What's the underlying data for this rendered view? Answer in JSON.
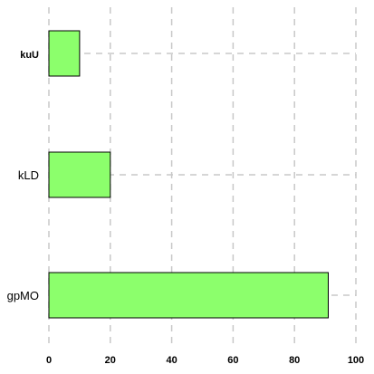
{
  "chart_data": {
    "type": "bar",
    "orientation": "horizontal",
    "categories": [
      "kuU",
      "kLD",
      "gpMO"
    ],
    "values": [
      10,
      20,
      91
    ],
    "xlim": [
      0,
      100
    ],
    "xticks": [
      0,
      20,
      40,
      60,
      80,
      100
    ],
    "grid": true,
    "bar_color": "#8cff6c",
    "bar_edge_color": "#000000",
    "grid_color": "#c8c8c8",
    "title": "",
    "xlabel": "",
    "ylabel": ""
  }
}
